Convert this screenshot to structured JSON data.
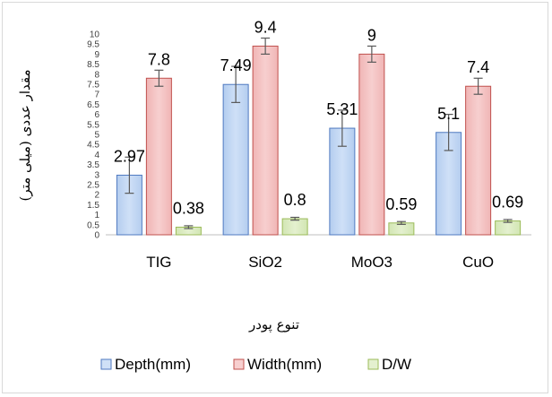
{
  "chart_data": {
    "type": "bar",
    "categories": [
      "TIG",
      "SiO2",
      "MoO3",
      "CuO"
    ],
    "series": [
      {
        "name": "Depth(mm)",
        "values": [
          2.97,
          7.49,
          5.31,
          5.1
        ],
        "errors": [
          0.9,
          0.9,
          0.9,
          0.9
        ],
        "fill": "#cfe0f7",
        "stroke": "#4f79c0",
        "fill_top": "#b4cdef"
      },
      {
        "name": "Width(mm)",
        "values": [
          7.8,
          9.4,
          9,
          7.4
        ],
        "errors": [
          0.4,
          0.4,
          0.4,
          0.4
        ],
        "fill": "#f7cfcf",
        "stroke": "#c0504d",
        "fill_top": "#f0b5b5"
      },
      {
        "name": "D/W",
        "values": [
          0.38,
          0.8,
          0.59,
          0.69
        ],
        "errors": [
          0.07,
          0.07,
          0.07,
          0.07
        ],
        "fill": "#e4f0cf",
        "stroke": "#9bbb59",
        "fill_top": "#d2e6b3"
      }
    ],
    "data_labels": [
      [
        "2.97",
        "7.8",
        "0.38"
      ],
      [
        "7.49",
        "9.4",
        "0.8"
      ],
      [
        "5.31",
        "9",
        "0.59"
      ],
      [
        "5.1",
        "7.4",
        "0.69"
      ]
    ],
    "yticks": [
      "0",
      "0.5",
      "1",
      "1.5",
      "2",
      "2.5",
      "3",
      "3.5",
      "4",
      "4.5",
      "5",
      "5.5",
      "6",
      "6.5",
      "7",
      "7.5",
      "8",
      "8.5",
      "9",
      "9.5",
      "10"
    ],
    "ylim": [
      0,
      10
    ],
    "xlabel": "تنوع پودر",
    "ylabel": "مقدار عددی (میلی متر)",
    "legend_position": "bottom",
    "grid": false,
    "axis_color": "#bfbfbf",
    "errorbar_color": "#595959"
  }
}
